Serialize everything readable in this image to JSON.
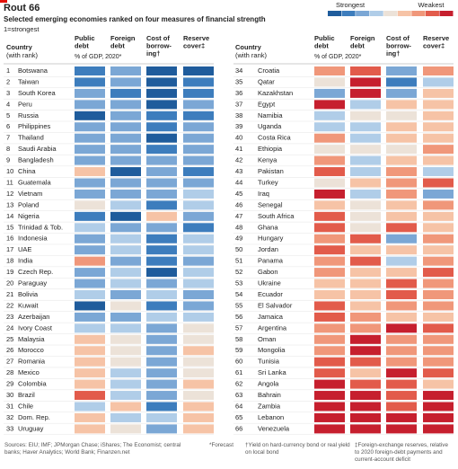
{
  "header": {
    "title": "Rout 66",
    "subtitle": "Selected emerging economies ranked on four measures of financial strength",
    "note": "1=strongest"
  },
  "legend": {
    "strongest": "Strongest",
    "weakest": "Weakest",
    "scale": [
      "#1f5c9c",
      "#3d7dbd",
      "#7ba7d5",
      "#b0cde8",
      "#ece2d8",
      "#f6c3a6",
      "#f0977a",
      "#e25b4b",
      "#c61f2e"
    ]
  },
  "table": {
    "country_header": [
      "Country",
      "(with rank)"
    ],
    "shared_sub": "% of GDP, 2020*",
    "measures": [
      [
        "Public",
        "debt"
      ],
      [
        "Foreign",
        "debt"
      ],
      [
        "Cost of",
        "borrow-",
        "ing†"
      ],
      [
        "Reserve",
        "cover‡"
      ]
    ],
    "rows": [
      {
        "rank": 1,
        "country": "Botswana",
        "levels": [
          2,
          3,
          1,
          1
        ]
      },
      {
        "rank": 2,
        "country": "Taiwan",
        "levels": [
          2,
          3,
          1,
          2
        ]
      },
      {
        "rank": 3,
        "country": "South Korea",
        "levels": [
          3,
          2,
          1,
          2
        ]
      },
      {
        "rank": 4,
        "country": "Peru",
        "levels": [
          3,
          3,
          1,
          3
        ]
      },
      {
        "rank": 5,
        "country": "Russia",
        "levels": [
          1,
          3,
          2,
          2
        ]
      },
      {
        "rank": 6,
        "country": "Philippines",
        "levels": [
          3,
          3,
          2,
          3
        ]
      },
      {
        "rank": 7,
        "country": "Thailand",
        "levels": [
          3,
          3,
          1,
          3
        ]
      },
      {
        "rank": 8,
        "country": "Saudi Arabia",
        "levels": [
          3,
          3,
          2,
          3
        ]
      },
      {
        "rank": 9,
        "country": "Bangladesh",
        "levels": [
          3,
          3,
          3,
          3
        ]
      },
      {
        "rank": 10,
        "country": "China",
        "levels": [
          6,
          1,
          3,
          2
        ]
      },
      {
        "rank": 11,
        "country": "Guatemala",
        "levels": [
          3,
          3,
          3,
          3
        ]
      },
      {
        "rank": 12,
        "country": "Vietnam",
        "levels": [
          3,
          3,
          3,
          4
        ]
      },
      {
        "rank": 13,
        "country": "Poland",
        "levels": [
          5,
          4,
          2,
          4
        ]
      },
      {
        "rank": 14,
        "country": "Nigeria",
        "levels": [
          2,
          1,
          6,
          3
        ]
      },
      {
        "rank": 15,
        "country": "Trinidad & Tob.",
        "levels": [
          4,
          3,
          3,
          2
        ]
      },
      {
        "rank": 16,
        "country": "Indonesia",
        "levels": [
          3,
          4,
          2,
          4
        ]
      },
      {
        "rank": 17,
        "country": "UAE",
        "levels": [
          3,
          4,
          2,
          4
        ]
      },
      {
        "rank": 18,
        "country": "India",
        "levels": [
          7,
          3,
          2,
          3
        ]
      },
      {
        "rank": 19,
        "country": "Czech Rep.",
        "levels": [
          3,
          4,
          1,
          4
        ]
      },
      {
        "rank": 20,
        "country": "Paraguay",
        "levels": [
          3,
          4,
          3,
          4
        ]
      },
      {
        "rank": 21,
        "country": "Bolivia",
        "levels": [
          4,
          3,
          4,
          3
        ]
      },
      {
        "rank": 22,
        "country": "Kuwait",
        "levels": [
          1,
          5,
          2,
          3
        ]
      },
      {
        "rank": 23,
        "country": "Azerbaijan",
        "levels": [
          3,
          3,
          4,
          4
        ]
      },
      {
        "rank": 24,
        "country": "Ivory Coast",
        "levels": [
          4,
          4,
          3,
          5
        ]
      },
      {
        "rank": 25,
        "country": "Malaysia",
        "levels": [
          6,
          5,
          3,
          5
        ]
      },
      {
        "rank": 26,
        "country": "Morocco",
        "levels": [
          6,
          5,
          3,
          6
        ]
      },
      {
        "rank": 27,
        "country": "Romania",
        "levels": [
          6,
          5,
          3,
          5
        ]
      },
      {
        "rank": 28,
        "country": "Mexico",
        "levels": [
          6,
          4,
          3,
          5
        ]
      },
      {
        "rank": 29,
        "country": "Colombia",
        "levels": [
          6,
          4,
          3,
          6
        ]
      },
      {
        "rank": 30,
        "country": "Brazil",
        "levels": [
          8,
          4,
          3,
          5
        ]
      },
      {
        "rank": 31,
        "country": "Chile",
        "levels": [
          4,
          6,
          2,
          6
        ]
      },
      {
        "rank": 32,
        "country": "Dom. Rep.",
        "levels": [
          6,
          4,
          4,
          6
        ]
      },
      {
        "rank": 33,
        "country": "Uruguay",
        "levels": [
          6,
          5,
          3,
          6
        ]
      },
      {
        "rank": 34,
        "country": "Croatia",
        "levels": [
          7,
          8,
          3,
          7
        ]
      },
      {
        "rank": 35,
        "country": "Qatar",
        "levels": [
          5,
          9,
          2,
          4
        ]
      },
      {
        "rank": 36,
        "country": "Kazakhstan",
        "levels": [
          3,
          9,
          3,
          6
        ]
      },
      {
        "rank": 37,
        "country": "Egypt",
        "levels": [
          9,
          4,
          6,
          6
        ]
      },
      {
        "rank": 38,
        "country": "Namibia",
        "levels": [
          4,
          5,
          5,
          6
        ]
      },
      {
        "rank": 39,
        "country": "Uganda",
        "levels": [
          4,
          4,
          6,
          6
        ]
      },
      {
        "rank": 40,
        "country": "Costa Rica",
        "levels": [
          7,
          4,
          6,
          6
        ]
      },
      {
        "rank": 41,
        "country": "Ethiopia",
        "levels": [
          5,
          5,
          5,
          7
        ]
      },
      {
        "rank": 42,
        "country": "Kenya",
        "levels": [
          7,
          4,
          6,
          6
        ]
      },
      {
        "rank": 43,
        "country": "Pakistan",
        "levels": [
          8,
          4,
          7,
          4
        ]
      },
      {
        "rank": 44,
        "country": "Turkey",
        "levels": [
          5,
          6,
          7,
          8
        ]
      },
      {
        "rank": 45,
        "country": "Iraq",
        "levels": [
          9,
          4,
          7,
          3
        ]
      },
      {
        "rank": 46,
        "country": "Senegal",
        "levels": [
          6,
          5,
          6,
          7
        ]
      },
      {
        "rank": 47,
        "country": "South Africa",
        "levels": [
          8,
          5,
          6,
          6
        ]
      },
      {
        "rank": 48,
        "country": "Ghana",
        "levels": [
          8,
          5,
          8,
          6
        ]
      },
      {
        "rank": 49,
        "country": "Hungary",
        "levels": [
          7,
          8,
          3,
          7
        ]
      },
      {
        "rank": 50,
        "country": "Jordan",
        "levels": [
          8,
          6,
          6,
          6
        ]
      },
      {
        "rank": 51,
        "country": "Panama",
        "levels": [
          7,
          8,
          4,
          7
        ]
      },
      {
        "rank": 52,
        "country": "Gabon",
        "levels": [
          7,
          6,
          6,
          8
        ]
      },
      {
        "rank": 53,
        "country": "Ukraine",
        "levels": [
          6,
          6,
          8,
          7
        ]
      },
      {
        "rank": 54,
        "country": "Ecuador",
        "levels": [
          6,
          6,
          8,
          7
        ]
      },
      {
        "rank": 55,
        "country": "El Salvador",
        "levels": [
          8,
          6,
          7,
          7
        ]
      },
      {
        "rank": 56,
        "country": "Jamaica",
        "levels": [
          8,
          7,
          6,
          6
        ]
      },
      {
        "rank": 57,
        "country": "Argentina",
        "levels": [
          7,
          7,
          9,
          8
        ]
      },
      {
        "rank": 58,
        "country": "Oman",
        "levels": [
          7,
          9,
          7,
          7
        ]
      },
      {
        "rank": 59,
        "country": "Mongolia",
        "levels": [
          7,
          9,
          7,
          7
        ]
      },
      {
        "rank": 60,
        "country": "Tunisia",
        "levels": [
          8,
          8,
          7,
          7
        ]
      },
      {
        "rank": 61,
        "country": "Sri Lanka",
        "levels": [
          8,
          6,
          9,
          8
        ]
      },
      {
        "rank": 62,
        "country": "Angola",
        "levels": [
          9,
          8,
          8,
          6
        ]
      },
      {
        "rank": 63,
        "country": "Bahrain",
        "levels": [
          9,
          9,
          8,
          9
        ]
      },
      {
        "rank": 64,
        "country": "Zambia",
        "levels": [
          9,
          9,
          8,
          9
        ]
      },
      {
        "rank": 65,
        "country": "Lebanon",
        "levels": [
          9,
          9,
          9,
          9
        ]
      },
      {
        "rank": 66,
        "country": "Venezuela",
        "levels": [
          9,
          9,
          9,
          9
        ]
      }
    ]
  },
  "footer": {
    "sources": "Sources: EIU; IMF; JPMorgan Chase; iShares; The Economist; central banks; Haver Analytics; World Bank; Finanzen.net",
    "forecast": "*Forecast",
    "yield_note": "†Yield on hard-currency bond or real yield on local bond",
    "reserve_note": "‡Foreign-exchange reserves, relative to 2020 foreign-debt payments and current-account deficit"
  }
}
